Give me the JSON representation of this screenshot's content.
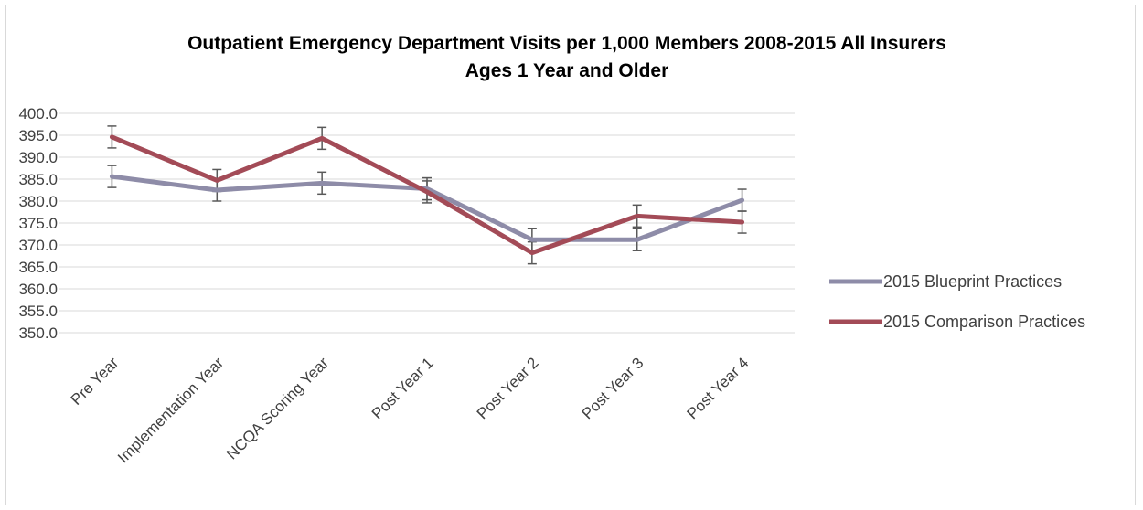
{
  "chart_data": {
    "type": "line",
    "title": "Outpatient Emergency Department Visits per 1,000 Members 2008-2015 All Insurers",
    "subtitle": "Ages 1 Year and Older",
    "xlabel": "",
    "ylabel": "",
    "categories": [
      "Pre Year",
      "Implementation Year",
      "NCQA Scoring Year",
      "Post Year 1",
      "Post Year 2",
      "Post Year 3",
      "Post Year 4"
    ],
    "ylim": [
      350.0,
      400.0
    ],
    "yticks": [
      "350.0",
      "355.0",
      "360.0",
      "365.0",
      "370.0",
      "375.0",
      "380.0",
      "385.0",
      "390.0",
      "395.0",
      "400.0"
    ],
    "grid": true,
    "legend_position": "right",
    "error_bar_halfwidth": 2.5,
    "series": [
      {
        "name": "2015 Blueprint Practices",
        "color": "#8e8ca8",
        "values": [
          385.6,
          382.5,
          384.1,
          382.8,
          371.2,
          371.2,
          380.2
        ]
      },
      {
        "name": "2015 Comparison Practices",
        "color": "#a34b57",
        "values": [
          394.6,
          384.7,
          394.3,
          382.1,
          368.2,
          376.6,
          375.2
        ]
      }
    ]
  }
}
